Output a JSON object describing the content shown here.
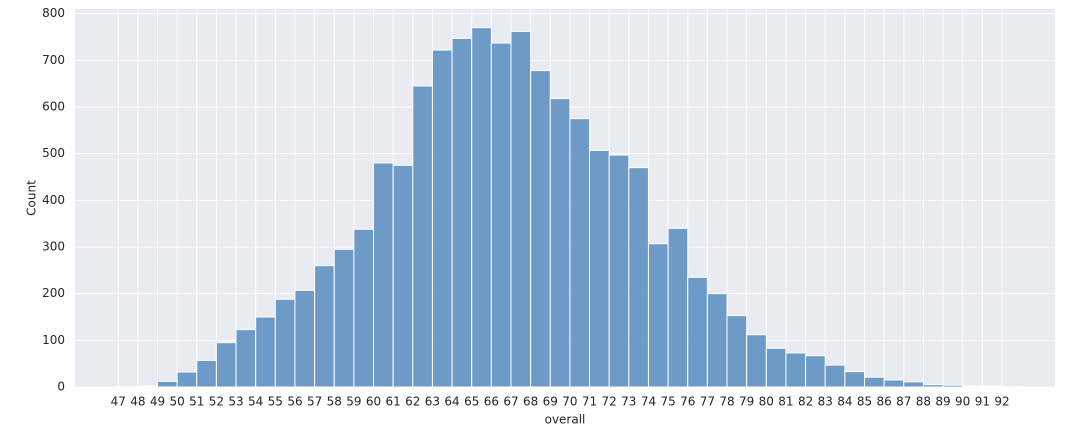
{
  "chart_data": {
    "type": "histogram",
    "x_label": "overall",
    "y_label": "Count",
    "bins": [
      47,
      48,
      49,
      50,
      51,
      52,
      53,
      54,
      55,
      56,
      57,
      58,
      59,
      60,
      61,
      62,
      63,
      64,
      65,
      66,
      67,
      68,
      69,
      70,
      71,
      72,
      73,
      74,
      75,
      76,
      77,
      78,
      79,
      80,
      81,
      82,
      83,
      84,
      85,
      86,
      87,
      88,
      89,
      90,
      91,
      92,
      93
    ],
    "counts": [
      1,
      2,
      12,
      32,
      57,
      95,
      123,
      150,
      188,
      207,
      260,
      295,
      338,
      480,
      475,
      645,
      722,
      747,
      770,
      737,
      762,
      678,
      618,
      575,
      507,
      497,
      470,
      307,
      340,
      235,
      200,
      153,
      112,
      83,
      73,
      67,
      47,
      33,
      21,
      15,
      11,
      5,
      4,
      2,
      2,
      1
    ],
    "color": "#5b8ec0",
    "background": "#eaeaf2",
    "grid": true,
    "xlim": [
      44.8,
      94.7
    ],
    "ylim": [
      0,
      810
    ],
    "xticks": [
      47,
      48,
      49,
      50,
      51,
      52,
      53,
      54,
      55,
      56,
      57,
      58,
      59,
      60,
      61,
      62,
      63,
      64,
      65,
      66,
      67,
      68,
      69,
      70,
      71,
      72,
      73,
      74,
      75,
      76,
      77,
      78,
      79,
      80,
      81,
      82,
      83,
      84,
      85,
      86,
      87,
      88,
      89,
      90,
      91,
      92
    ],
    "yticks": [
      0,
      100,
      200,
      300,
      400,
      500,
      600,
      700,
      800
    ]
  }
}
